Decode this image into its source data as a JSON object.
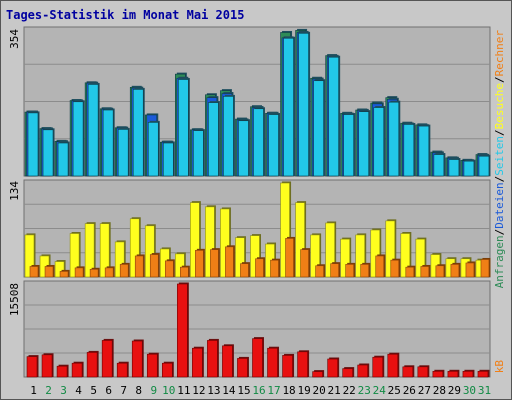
{
  "title": "Tages-Statistik im Monat Mai 2015",
  "colors": {
    "background": "#c8c8c8",
    "plot_bg": "#b4b4b4",
    "grid": "#8c8c8c",
    "title": "#0000a0",
    "anfragen": "#2e8b57",
    "dateien": "#1a5ad9",
    "seiten": "#22c8e8",
    "besuche": "#ffff1e",
    "rechner": "#f07f16",
    "kb": "#e81010",
    "weekend": "#118a44",
    "weekday": "#000000"
  },
  "chart_data": [
    {
      "type": "bar",
      "panel": "requests",
      "ylabel_max": "354",
      "ylim": [
        0,
        354
      ],
      "categories": [
        "1",
        "2",
        "3",
        "4",
        "5",
        "6",
        "7",
        "8",
        "9",
        "10",
        "11",
        "12",
        "13",
        "14",
        "15",
        "16",
        "17",
        "18",
        "19",
        "20",
        "21",
        "22",
        "23",
        "24",
        "25",
        "26",
        "27",
        "28",
        "29",
        "30",
        "31"
      ],
      "weekend_days": [
        "2",
        "3",
        "9",
        "10",
        "16",
        "17",
        "23",
        "24",
        "30",
        "31"
      ],
      "series": [
        {
          "name": "Anfragen",
          "values": [
            155,
            115,
            84,
            183,
            226,
            163,
            117,
            215,
            148,
            82,
            247,
            112,
            197,
            207,
            138,
            168,
            152,
            348,
            353,
            237,
            292,
            152,
            160,
            177,
            190,
            128,
            124,
            58,
            44,
            38,
            52
          ]
        },
        {
          "name": "Dateien",
          "values": [
            155,
            114,
            83,
            182,
            225,
            162,
            116,
            213,
            148,
            82,
            237,
            112,
            190,
            200,
            136,
            166,
            152,
            335,
            348,
            235,
            290,
            150,
            159,
            175,
            186,
            126,
            122,
            56,
            43,
            37,
            50
          ]
        },
        {
          "name": "Seiten",
          "values": [
            153,
            112,
            80,
            180,
            222,
            160,
            113,
            210,
            130,
            80,
            234,
            110,
            178,
            193,
            134,
            163,
            149,
            334,
            346,
            231,
            288,
            149,
            156,
            166,
            179,
            125,
            121,
            52,
            40,
            36,
            48
          ]
        }
      ],
      "legend": [
        "Anfragen",
        "Dateien",
        "Seiten"
      ]
    },
    {
      "type": "bar",
      "panel": "visits",
      "ylabel_max": "134",
      "ylim": [
        0,
        134
      ],
      "categories": [
        "1",
        "2",
        "3",
        "4",
        "5",
        "6",
        "7",
        "8",
        "9",
        "10",
        "11",
        "12",
        "13",
        "14",
        "15",
        "16",
        "17",
        "18",
        "19",
        "20",
        "21",
        "22",
        "23",
        "24",
        "25",
        "26",
        "27",
        "28",
        "29",
        "30",
        "31"
      ],
      "series": [
        {
          "name": "Besuche",
          "values": [
            60,
            30,
            22,
            62,
            76,
            76,
            50,
            83,
            73,
            40,
            33,
            106,
            100,
            97,
            56,
            59,
            47,
            134,
            106,
            60,
            77,
            54,
            60,
            67,
            80,
            62,
            54,
            32,
            26,
            26,
            24
          ]
        },
        {
          "name": "Rechner",
          "values": [
            15,
            15,
            8,
            13,
            11,
            13,
            18,
            30,
            32,
            23,
            14,
            38,
            39,
            43,
            19,
            26,
            24,
            55,
            39,
            16,
            19,
            18,
            18,
            30,
            24,
            14,
            15,
            16,
            18,
            20,
            25
          ]
        }
      ],
      "legend": [
        "Rechner",
        "Besuche"
      ]
    },
    {
      "type": "bar",
      "panel": "kb",
      "ylabel_max": "15508",
      "ylim": [
        0,
        15508
      ],
      "categories": [
        "1",
        "2",
        "3",
        "4",
        "5",
        "6",
        "7",
        "8",
        "9",
        "10",
        "11",
        "12",
        "13",
        "14",
        "15",
        "16",
        "17",
        "18",
        "19",
        "20",
        "21",
        "22",
        "23",
        "24",
        "25",
        "26",
        "27",
        "28",
        "29",
        "30",
        "31"
      ],
      "series": [
        {
          "name": "kB",
          "values": [
            3400,
            3700,
            1800,
            2300,
            4100,
            6100,
            2300,
            6000,
            3800,
            2300,
            15508,
            4800,
            6100,
            5200,
            3100,
            6400,
            4800,
            3600,
            4200,
            900,
            3000,
            1400,
            2000,
            3300,
            3800,
            1700,
            1700,
            950,
            950,
            950,
            950
          ]
        }
      ],
      "legend": [
        "kB"
      ]
    }
  ],
  "right_legend": {
    "top": [
      "Anfragen",
      "/",
      "Dateien",
      "/",
      "Seiten",
      "/",
      "Besuche",
      "/",
      "Rechner"
    ],
    "bottom": "kB"
  }
}
